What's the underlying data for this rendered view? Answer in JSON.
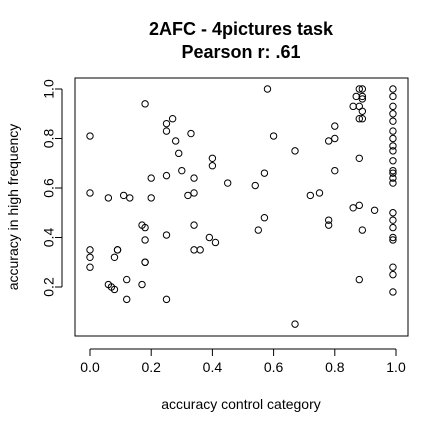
{
  "chart_data": {
    "type": "scatter",
    "title": "2AFC - 4pictures task",
    "subtitle": "Pearson r: .61",
    "xlabel": "accuracy control category",
    "ylabel": "accuracy in high frequency",
    "xlim": [
      0,
      1
    ],
    "ylim": [
      0.05,
      1.0
    ],
    "xticks": [
      "0.0",
      "0.2",
      "0.4",
      "0.6",
      "0.8",
      "1.0"
    ],
    "yticks": [
      "0.2",
      "0.4",
      "0.6",
      "0.8",
      "1.0"
    ],
    "grid": false,
    "legend": "none",
    "points": [
      [
        0.0,
        0.81
      ],
      [
        0.0,
        0.58
      ],
      [
        0.0,
        0.35
      ],
      [
        0.0,
        0.32
      ],
      [
        0.0,
        0.28
      ],
      [
        0.06,
        0.56
      ],
      [
        0.06,
        0.21
      ],
      [
        0.07,
        0.2
      ],
      [
        0.08,
        0.32
      ],
      [
        0.08,
        0.19
      ],
      [
        0.09,
        0.35
      ],
      [
        0.09,
        0.35
      ],
      [
        0.11,
        0.57
      ],
      [
        0.12,
        0.23
      ],
      [
        0.12,
        0.15
      ],
      [
        0.13,
        0.56
      ],
      [
        0.17,
        0.45
      ],
      [
        0.17,
        0.21
      ],
      [
        0.18,
        0.94
      ],
      [
        0.18,
        0.44
      ],
      [
        0.18,
        0.39
      ],
      [
        0.18,
        0.3
      ],
      [
        0.18,
        0.3
      ],
      [
        0.2,
        0.64
      ],
      [
        0.2,
        0.56
      ],
      [
        0.25,
        0.86
      ],
      [
        0.25,
        0.83
      ],
      [
        0.25,
        0.65
      ],
      [
        0.25,
        0.41
      ],
      [
        0.25,
        0.15
      ],
      [
        0.27,
        0.88
      ],
      [
        0.28,
        0.79
      ],
      [
        0.29,
        0.74
      ],
      [
        0.3,
        0.67
      ],
      [
        0.32,
        0.57
      ],
      [
        0.33,
        0.82
      ],
      [
        0.34,
        0.64
      ],
      [
        0.34,
        0.58
      ],
      [
        0.34,
        0.45
      ],
      [
        0.34,
        0.35
      ],
      [
        0.36,
        0.35
      ],
      [
        0.39,
        0.4
      ],
      [
        0.4,
        0.72
      ],
      [
        0.4,
        0.69
      ],
      [
        0.41,
        0.38
      ],
      [
        0.45,
        0.62
      ],
      [
        0.54,
        0.61
      ],
      [
        0.55,
        0.43
      ],
      [
        0.57,
        0.66
      ],
      [
        0.57,
        0.48
      ],
      [
        0.58,
        1.0
      ],
      [
        0.6,
        0.81
      ],
      [
        0.67,
        0.75
      ],
      [
        0.67,
        0.05
      ],
      [
        0.72,
        0.57
      ],
      [
        0.75,
        0.58
      ],
      [
        0.78,
        0.79
      ],
      [
        0.78,
        0.47
      ],
      [
        0.78,
        0.45
      ],
      [
        0.8,
        0.85
      ],
      [
        0.8,
        0.8
      ],
      [
        0.8,
        0.67
      ],
      [
        0.86,
        0.93
      ],
      [
        0.86,
        0.52
      ],
      [
        0.87,
        0.97
      ],
      [
        0.88,
        1.0
      ],
      [
        0.88,
        0.93
      ],
      [
        0.88,
        0.88
      ],
      [
        0.88,
        0.72
      ],
      [
        0.88,
        0.53
      ],
      [
        0.88,
        0.23
      ],
      [
        0.89,
        1.0
      ],
      [
        0.89,
        0.97
      ],
      [
        0.89,
        0.96
      ],
      [
        0.89,
        0.91
      ],
      [
        0.89,
        0.88
      ],
      [
        0.89,
        0.43
      ],
      [
        0.93,
        0.51
      ],
      [
        0.99,
        1.0
      ],
      [
        0.99,
        0.97
      ],
      [
        0.99,
        0.93
      ],
      [
        0.99,
        0.9
      ],
      [
        0.99,
        0.87
      ],
      [
        0.99,
        0.83
      ],
      [
        0.99,
        0.8
      ],
      [
        0.99,
        0.77
      ],
      [
        0.99,
        0.75
      ],
      [
        0.99,
        0.71
      ],
      [
        0.99,
        0.67
      ],
      [
        0.99,
        0.66
      ],
      [
        0.99,
        0.64
      ],
      [
        0.99,
        0.62
      ],
      [
        0.99,
        0.5
      ],
      [
        0.99,
        0.47
      ],
      [
        0.99,
        0.44
      ],
      [
        0.99,
        0.4
      ],
      [
        0.99,
        0.39
      ],
      [
        0.99,
        0.28
      ],
      [
        0.99,
        0.25
      ],
      [
        0.99,
        0.18
      ]
    ]
  }
}
